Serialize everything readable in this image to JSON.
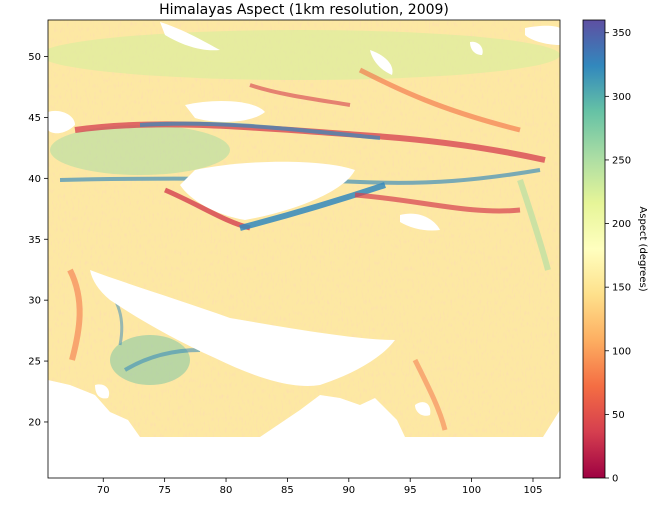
{
  "chart_data": {
    "type": "heatmap",
    "title": "Himalayas Aspect (1km resolution, 2009)",
    "xlabel": "",
    "ylabel": "",
    "xlim": [
      65.5,
      107.2
    ],
    "ylim": [
      15.4,
      53.0
    ],
    "xticks": [
      70,
      75,
      80,
      85,
      90,
      95,
      100,
      105
    ],
    "yticks": [
      20,
      25,
      30,
      35,
      40,
      45,
      50
    ],
    "x_tick_labels": [
      "70",
      "75",
      "80",
      "85",
      "90",
      "95",
      "100",
      "105"
    ],
    "y_tick_labels": [
      "20",
      "25",
      "30",
      "35",
      "40",
      "45",
      "50"
    ],
    "colorbar": {
      "label": "Aspect (degrees)",
      "range": [
        0,
        360
      ],
      "ticks": [
        0,
        50,
        100,
        150,
        200,
        250,
        300,
        350
      ],
      "tick_labels": [
        "0",
        "50",
        "100",
        "150",
        "200",
        "250",
        "300",
        "350"
      ],
      "colormap": "Spectral",
      "colors": [
        "#9e0142",
        "#d53e4f",
        "#f46d43",
        "#fdae61",
        "#fee08b",
        "#ffffbf",
        "#e6f598",
        "#abdda4",
        "#66c2a5",
        "#3288bd",
        "#5e4fa2"
      ]
    },
    "grid": false,
    "data_extent": {
      "lon": [
        65.5,
        107.2
      ],
      "lat": [
        19.4,
        53.0
      ]
    },
    "no_data_color": "#ffffff"
  }
}
